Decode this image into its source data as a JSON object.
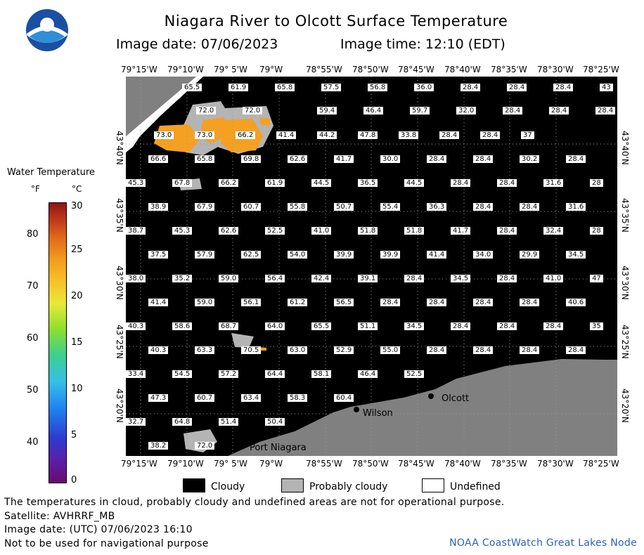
{
  "header": {
    "title": "Niagara River to Olcott Surface Temperature",
    "image_date": "Image date: 07/06/2023",
    "image_time": "Image time: 12:10 (EDT)"
  },
  "axes": {
    "lon_labels": [
      "79°15'W",
      "79°10'W",
      "79° 5'W",
      "79°W",
      "78°55'W",
      "78°50'W",
      "78°45'W",
      "78°40'W",
      "78°35'W",
      "78°30'W",
      "78°25'W"
    ],
    "lat_labels": [
      "43°40'N",
      "43°35'N",
      "43°30'N",
      "43°25'N",
      "43°20'N"
    ]
  },
  "legend": {
    "title": "Water Temperature",
    "unit_f": "°F",
    "unit_c": "°C",
    "f_ticks": [
      "80",
      "70",
      "60",
      "50",
      "40"
    ],
    "c_ticks": [
      "30",
      "25",
      "20",
      "15",
      "10",
      "5",
      "0"
    ],
    "cloudy": "Cloudy",
    "probably_cloudy": "Probably cloudy",
    "undefined": "Undefined"
  },
  "places": {
    "olcott": "Olcott",
    "wilson": "Wilson",
    "port_niagara": "Port Niagara"
  },
  "temps": [
    [
      "65.5",
      "61.9",
      "65.8",
      "57.5",
      "56.8",
      "36.0",
      "28.4",
      "28.4",
      "28.4",
      "43"
    ],
    [
      "72.0",
      "72.0",
      "59.4",
      "46.4",
      "59.7",
      "32.0",
      "28.4",
      "28.4",
      "28.4"
    ],
    [
      "73.0",
      "73.0",
      "66.2",
      "41.4",
      "44.2",
      "47.8",
      "33.8",
      "28.4",
      "28.4",
      "37"
    ],
    [
      "66.6",
      "65.8",
      "69.8",
      "62.6",
      "41.7",
      "30.0",
      "28.4",
      "28.4",
      "30.2",
      "28.4"
    ],
    [
      "45.3",
      "67.8",
      "66.2",
      "61.9",
      "44.5",
      "36.5",
      "44.5",
      "28.4",
      "28.4",
      "31.6",
      "28"
    ],
    [
      "38.9",
      "67.9",
      "60.7",
      "55.8",
      "50.7",
      "55.4",
      "36.3",
      "28.4",
      "28.4",
      "31.6"
    ],
    [
      "38.7",
      "45.3",
      "62.6",
      "52.5",
      "41.0",
      "51.8",
      "51.8",
      "41.7",
      "28.4",
      "32.4",
      "28"
    ],
    [
      "37.5",
      "57.9",
      "62.5",
      "54.0",
      "39.9",
      "39.9",
      "41.4",
      "34.0",
      "29.9",
      "34.5"
    ],
    [
      "38.0",
      "35.2",
      "59.0",
      "56.4",
      "42.4",
      "39.1",
      "28.4",
      "34.5",
      "28.4",
      "41.0",
      "47"
    ],
    [
      "41.4",
      "59.0",
      "56.1",
      "61.2",
      "56.5",
      "28.4",
      "28.4",
      "28.4",
      "28.4",
      "40.6"
    ],
    [
      "40.3",
      "58.6",
      "68.7",
      "64.0",
      "65.5",
      "51.1",
      "34.5",
      "28.4",
      "28.4",
      "28.4",
      "35"
    ],
    [
      "40.3",
      "63.3",
      "70.5",
      "63.0",
      "52.9",
      "55.0",
      "28.4",
      "28.4",
      "28.4",
      "28.4"
    ],
    [
      "33.4",
      "54.5",
      "57.2",
      "64.4",
      "58.1",
      "46.4",
      "52.5"
    ],
    [
      "47.3",
      "60.7",
      "63.4",
      "58.3",
      "60.4"
    ],
    [
      "32.7",
      "64.8",
      "51.4",
      "50.4"
    ],
    [
      "38.2",
      "72.0"
    ]
  ],
  "footer": {
    "note": "The temperatures in cloud, probably cloudy and undefined areas are not for operational purpose.",
    "satellite": "Satellite: AVHRRF_MB",
    "utc": "Image date: (UTC) 07/06/2023  16:10",
    "nav": "Not to be used for navigational purpose",
    "credit": "NOAA CoastWatch Great Lakes Node"
  },
  "colors": {
    "land": "#808080",
    "probably_cloudy": "#b4b4b4",
    "orange": "#f5a020",
    "credit": "#2a5fc4"
  }
}
